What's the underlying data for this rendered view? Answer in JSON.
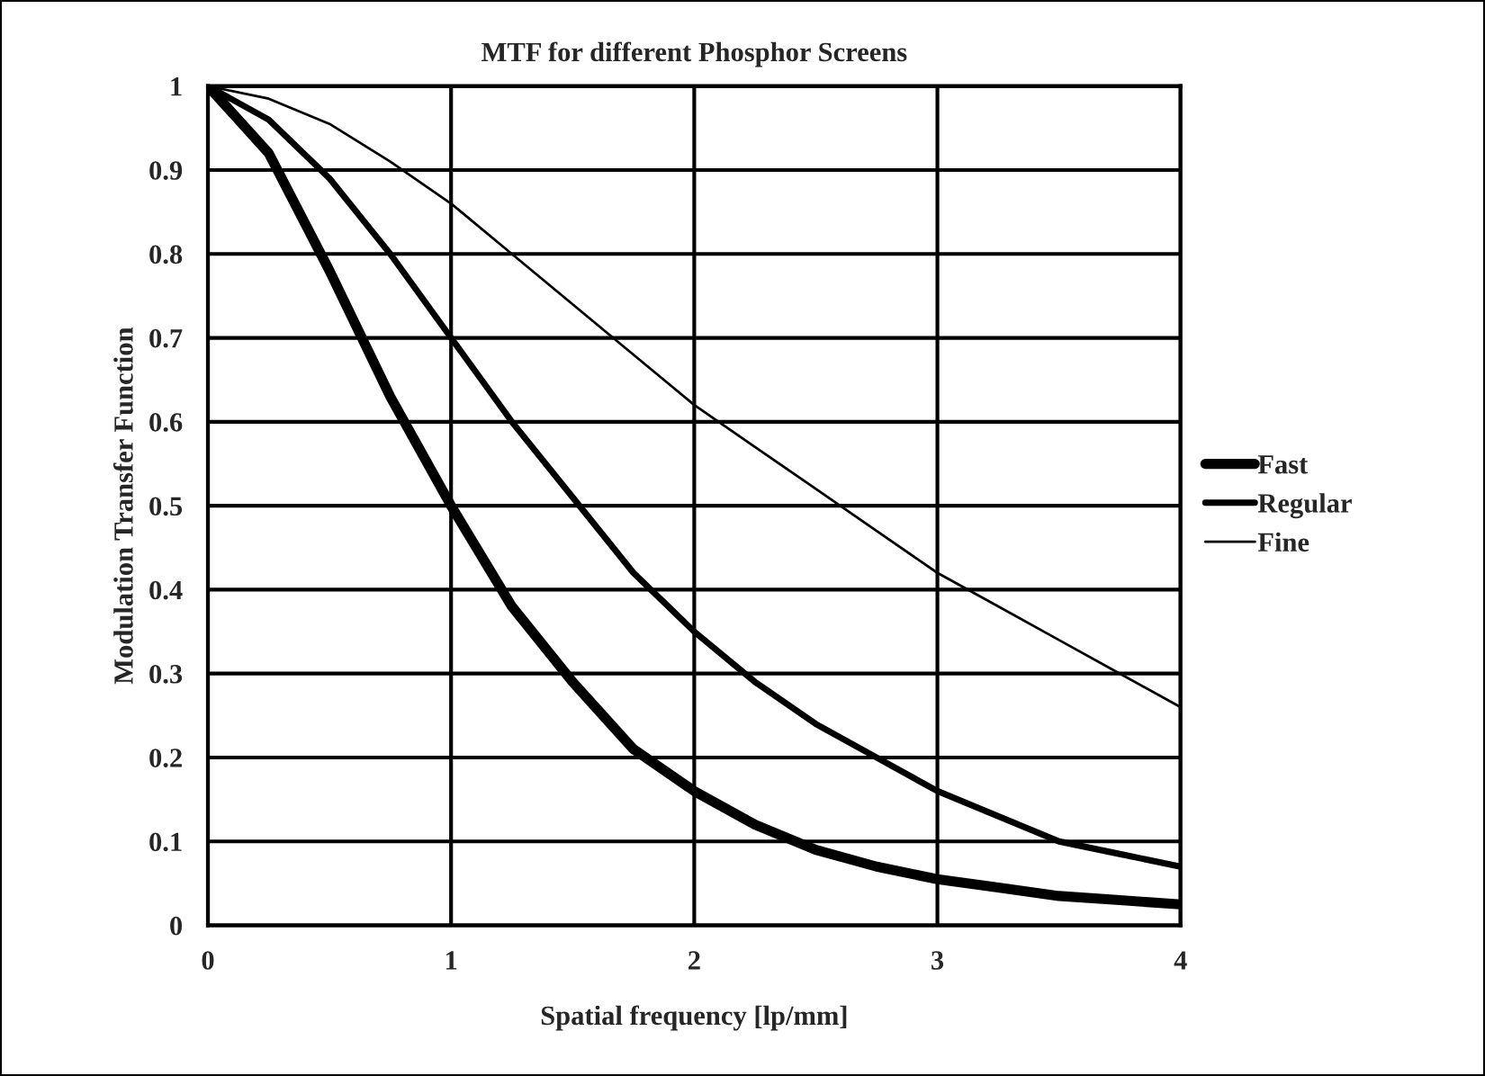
{
  "chart_data": {
    "type": "line",
    "title": "MTF for different Phosphor Screens",
    "xlabel": "Spatial frequency [lp/mm]",
    "ylabel": "Modulation Transfer Function",
    "x": [
      0,
      0.25,
      0.5,
      0.75,
      1,
      1.25,
      1.5,
      1.75,
      2,
      2.25,
      2.5,
      2.75,
      3,
      3.25,
      3.5,
      3.75,
      4
    ],
    "series": [
      {
        "name": "Fast",
        "color": "#000000",
        "values": [
          1,
          0.92,
          0.78,
          0.63,
          0.5,
          0.38,
          0.29,
          0.21,
          0.16,
          0.12,
          0.09,
          0.07,
          0.055,
          0.045,
          0.035,
          0.03,
          0.025
        ]
      },
      {
        "name": "Regular",
        "color": "#000000",
        "values": [
          1,
          0.96,
          0.89,
          0.8,
          0.7,
          0.6,
          0.51,
          0.42,
          0.35,
          0.29,
          0.24,
          0.2,
          0.16,
          0.13,
          0.1,
          0.085,
          0.07
        ]
      },
      {
        "name": "Fine",
        "color": "#000000",
        "values": [
          1,
          0.985,
          0.955,
          0.91,
          0.86,
          0.8,
          0.74,
          0.68,
          0.62,
          0.57,
          0.52,
          0.47,
          0.42,
          0.38,
          0.34,
          0.3,
          0.26
        ]
      }
    ],
    "xlim": [
      0,
      4
    ],
    "xticks": [
      0,
      1,
      2,
      3,
      4
    ],
    "ylim": [
      0,
      1
    ],
    "yticks": [
      0,
      0.1,
      0.2,
      0.3,
      0.4,
      0.5,
      0.6,
      0.7,
      0.8,
      0.9,
      1
    ],
    "grid": true,
    "legend": "right",
    "marker": "none",
    "line_style": "solid"
  }
}
